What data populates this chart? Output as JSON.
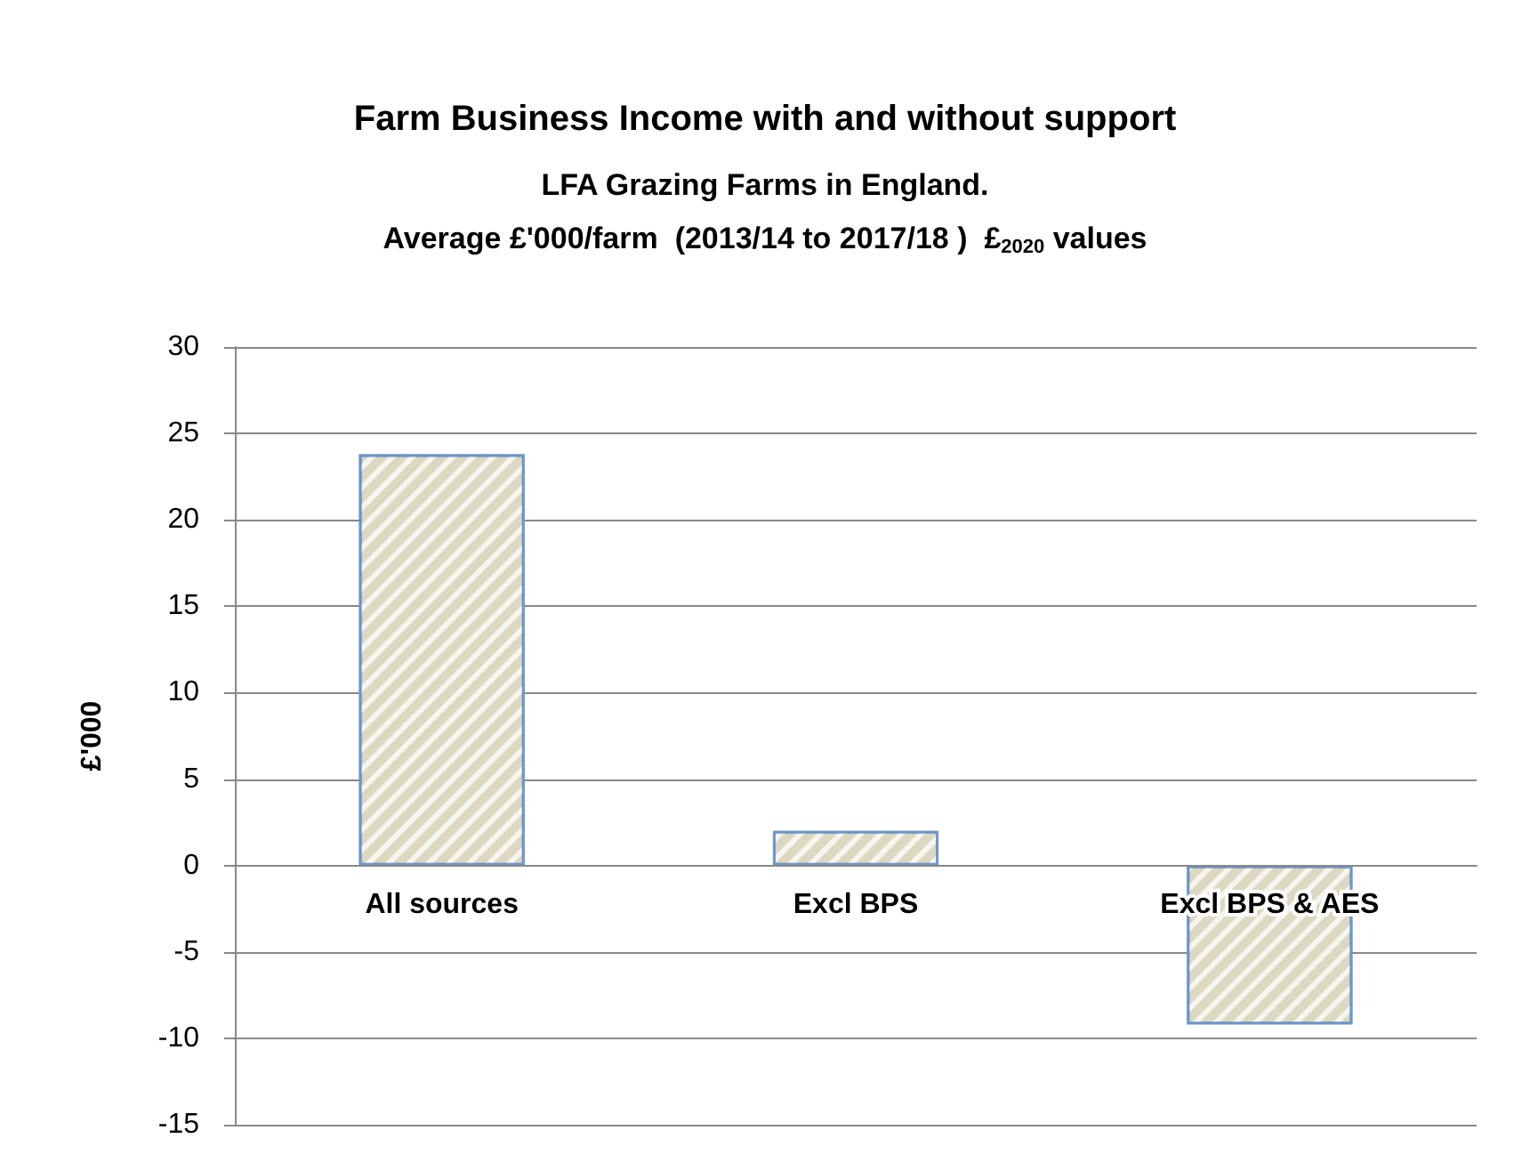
{
  "chart_data": {
    "type": "bar",
    "title": "Farm Business Income with and without support",
    "subtitle": "LFA Grazing Farms in England.\nAverage £'000/farm  (2013/14 to 2017/18 )  £$_{2020}$ values",
    "ylabel": "£'000",
    "categories": [
      "All sources",
      "Excl BPS",
      "Excl BPS & AES"
    ],
    "values": [
      23.8,
      2,
      -9.2
    ],
    "color": "#ddd8c0",
    "ylim": [
      -15,
      30
    ],
    "yticks": [
      -15,
      -10,
      -5,
      0,
      5,
      10,
      15,
      20,
      25,
      30
    ],
    "grid": "y"
  }
}
